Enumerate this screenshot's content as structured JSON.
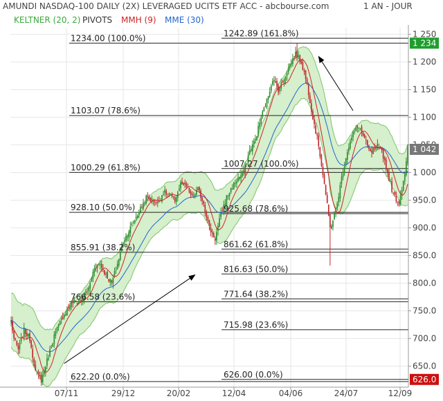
{
  "header": {
    "title": "AMUNDI NASDAQ-100 DAILY (2X) LEVERAGED UCITS ETF ACC - abcbourse.com",
    "period": "1 AN - JOUR"
  },
  "legend": [
    {
      "label": "KELTNER (20, 2)",
      "color": "#3aa83a"
    },
    {
      "label": "PIVOTS",
      "color": "#333333"
    },
    {
      "label": "MMH (9)",
      "color": "#cc2222"
    },
    {
      "label": "MME (30)",
      "color": "#2266cc"
    }
  ],
  "colors": {
    "up": "#2e8b2e",
    "down": "#c0282d",
    "keltner_fill": "#d6efcc",
    "keltner_line": "#7cc46a",
    "mmh": "#cc2222",
    "mme": "#2266cc",
    "last_price_badge": "#1e9e2e",
    "low_badge": "#cc1111"
  },
  "chart_data": {
    "type": "candlestick",
    "title": "AMUNDI NASDAQ-100 DAILY (2X) LEVERAGED UCITS ETF ACC - abcbourse.com",
    "ylim": [
      612,
      1262
    ],
    "y_ticks": [
      650,
      700,
      750,
      800,
      850,
      900,
      950,
      1000,
      1050,
      1100,
      1150,
      1200,
      1250
    ],
    "y_tick_labels": [
      "650.0",
      "700.0",
      "750.0",
      "800.0",
      "850.0",
      "900.0",
      "950.0",
      "1 000",
      "1 050",
      "1 100",
      "1 150",
      "1 200",
      "1 250"
    ],
    "x_tick_labels": [
      "07/11",
      "29/12",
      "20/02",
      "12/04",
      "04/06",
      "24/07",
      "12/09"
    ],
    "series_names": [
      "KELTNER (20, 2)",
      "PIVOTS",
      "MMH (9)",
      "MME (30)"
    ],
    "close_path": [
      [
        0,
        732
      ],
      [
        2,
        700
      ],
      [
        5,
        680
      ],
      [
        9,
        715
      ],
      [
        13,
        700
      ],
      [
        17,
        640
      ],
      [
        21,
        625
      ],
      [
        25,
        660
      ],
      [
        30,
        705
      ],
      [
        36,
        740
      ],
      [
        42,
        765
      ],
      [
        48,
        768
      ],
      [
        54,
        790
      ],
      [
        58,
        830
      ],
      [
        62,
        835
      ],
      [
        66,
        815
      ],
      [
        70,
        800
      ],
      [
        74,
        835
      ],
      [
        78,
        875
      ],
      [
        82,
        895
      ],
      [
        86,
        915
      ],
      [
        90,
        935
      ],
      [
        94,
        955
      ],
      [
        98,
        950
      ],
      [
        102,
        945
      ],
      [
        106,
        965
      ],
      [
        110,
        960
      ],
      [
        114,
        950
      ],
      [
        118,
        980
      ],
      [
        122,
        975
      ],
      [
        126,
        955
      ],
      [
        130,
        970
      ],
      [
        134,
        945
      ],
      [
        138,
        900
      ],
      [
        142,
        880
      ],
      [
        146,
        925
      ],
      [
        150,
        955
      ],
      [
        154,
        975
      ],
      [
        158,
        990
      ],
      [
        162,
        1000
      ],
      [
        166,
        1040
      ],
      [
        170,
        1060
      ],
      [
        174,
        1100
      ],
      [
        178,
        1130
      ],
      [
        182,
        1170
      ],
      [
        186,
        1150
      ],
      [
        190,
        1170
      ],
      [
        194,
        1195
      ],
      [
        198,
        1215
      ],
      [
        202,
        1200
      ],
      [
        206,
        1160
      ],
      [
        210,
        1100
      ],
      [
        214,
        1050
      ],
      [
        218,
        980
      ],
      [
        222,
        900
      ],
      [
        226,
        930
      ],
      [
        230,
        990
      ],
      [
        234,
        1040
      ],
      [
        238,
        1070
      ],
      [
        242,
        1085
      ],
      [
        246,
        1060
      ],
      [
        250,
        1035
      ],
      [
        254,
        1045
      ],
      [
        258,
        1040
      ],
      [
        262,
        1000
      ],
      [
        266,
        960
      ],
      [
        270,
        945
      ],
      [
        274,
        1000
      ],
      [
        276,
        1042
      ]
    ],
    "last_price": {
      "value": 1042,
      "label": "1 042"
    },
    "high_marker": {
      "value": 1234,
      "label": "1 234"
    },
    "low_marker": {
      "value": 626,
      "label": "626.0"
    },
    "fib_levels_left": [
      {
        "value": 1234,
        "label": "1234.00  (100.0%)"
      },
      {
        "value": 1103.07,
        "label": "1103.07  (78.6%)"
      },
      {
        "value": 1000.29,
        "label": "1000.29  (61.8%)"
      },
      {
        "value": 928.1,
        "label": "928.10  (50.0%)"
      },
      {
        "value": 855.91,
        "label": "855.91  (38.2%)"
      },
      {
        "value": 766.58,
        "label": "766.58  (23.6%)"
      },
      {
        "value": 622.2,
        "label": "622.20  (0.0%)"
      }
    ],
    "fib_levels_right": [
      {
        "value": 1242.89,
        "label": "1242.89  (161.8%)"
      },
      {
        "value": 1007.27,
        "label": "1007.27  (100.0%)"
      },
      {
        "value": 925.68,
        "label": "925.68  (78.6%)"
      },
      {
        "value": 861.62,
        "label": "861.62  (61.8%)"
      },
      {
        "value": 816.63,
        "label": "816.63  (50.0%)"
      },
      {
        "value": 771.64,
        "label": "771.64  (38.2%)"
      },
      {
        "value": 715.98,
        "label": "715.98  (23.6%)"
      },
      {
        "value": 626,
        "label": "626.00  (0.0%)"
      }
    ],
    "trend_arrows": [
      {
        "from": {
          "date_index": 37,
          "value": 655
        },
        "to": {
          "date_index": 128,
          "value": 815
        }
      },
      {
        "from": {
          "date_index": 238,
          "value": 1112
        },
        "to": {
          "date_index": 214,
          "value": 1210
        }
      }
    ]
  }
}
